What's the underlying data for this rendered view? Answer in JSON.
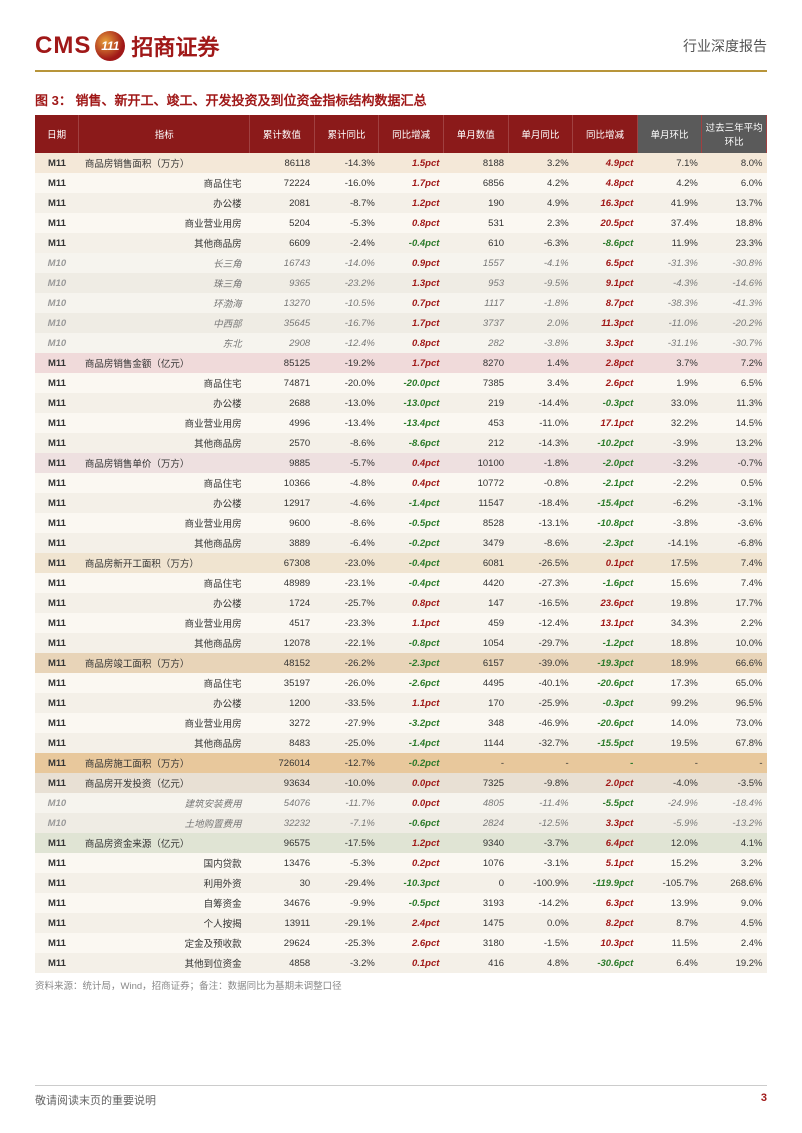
{
  "header": {
    "logo_cms": "CMS",
    "logo_circle": "111",
    "logo_cn": "招商证券",
    "right": "行业深度报告"
  },
  "figure": {
    "num": "图 3：",
    "title": "销售、新开工、竣工、开发投资及到位资金指标结构数据汇总"
  },
  "columns": [
    "日期",
    "指标",
    "累计数值",
    "累计同比",
    "同比增减",
    "单月数值",
    "单月同比",
    "同比增减",
    "单月环比",
    "过去三年平均环比"
  ],
  "sections": [
    {
      "bg": "#f4e8d8",
      "head": [
        "M11",
        "商品房销售面积（万方）",
        "86118",
        "-14.3%",
        "1.5pct",
        "8188",
        "3.2%",
        "4.9pct",
        "7.1%",
        "8.0%"
      ],
      "rows": [
        [
          "M11",
          "商品住宅",
          "72224",
          "-16.0%",
          "1.7pct",
          "6856",
          "4.2%",
          "4.8pct",
          "4.2%",
          "6.0%"
        ],
        [
          "M11",
          "办公楼",
          "2081",
          "-8.7%",
          "1.2pct",
          "190",
          "4.9%",
          "16.3pct",
          "41.9%",
          "13.7%"
        ],
        [
          "M11",
          "商业营业用房",
          "5204",
          "-5.3%",
          "0.8pct",
          "531",
          "2.3%",
          "20.5pct",
          "37.4%",
          "18.8%"
        ],
        [
          "M11",
          "其他商品房",
          "6609",
          "-2.4%",
          "-0.4pct",
          "610",
          "-6.3%",
          "-8.6pct",
          "11.9%",
          "23.3%"
        ]
      ],
      "italic_rows": [
        [
          "M10",
          "长三角",
          "16743",
          "-14.0%",
          "0.9pct",
          "1557",
          "-4.1%",
          "6.5pct",
          "-31.3%",
          "-30.8%"
        ],
        [
          "M10",
          "珠三角",
          "9365",
          "-23.2%",
          "1.3pct",
          "953",
          "-9.5%",
          "9.1pct",
          "-4.3%",
          "-14.6%"
        ],
        [
          "M10",
          "环渤海",
          "13270",
          "-10.5%",
          "0.7pct",
          "1117",
          "-1.8%",
          "8.7pct",
          "-38.3%",
          "-41.3%"
        ],
        [
          "M10",
          "中西部",
          "35645",
          "-16.7%",
          "1.7pct",
          "3737",
          "2.0%",
          "11.3pct",
          "-11.0%",
          "-20.2%"
        ],
        [
          "M10",
          "东北",
          "2908",
          "-12.4%",
          "0.8pct",
          "282",
          "-3.8%",
          "3.3pct",
          "-31.1%",
          "-30.7%"
        ]
      ]
    },
    {
      "bg": "#f0dada",
      "head": [
        "M11",
        "商品房销售金额（亿元）",
        "85125",
        "-19.2%",
        "1.7pct",
        "8270",
        "1.4%",
        "2.8pct",
        "3.7%",
        "7.2%"
      ],
      "rows": [
        [
          "M11",
          "商品住宅",
          "74871",
          "-20.0%",
          "-20.0pct",
          "7385",
          "3.4%",
          "2.6pct",
          "1.9%",
          "6.5%"
        ],
        [
          "M11",
          "办公楼",
          "2688",
          "-13.0%",
          "-13.0pct",
          "219",
          "-14.4%",
          "-0.3pct",
          "33.0%",
          "11.3%"
        ],
        [
          "M11",
          "商业营业用房",
          "4996",
          "-13.4%",
          "-13.4pct",
          "453",
          "-11.0%",
          "17.1pct",
          "32.2%",
          "14.5%"
        ],
        [
          "M11",
          "其他商品房",
          "2570",
          "-8.6%",
          "-8.6pct",
          "212",
          "-14.3%",
          "-10.2pct",
          "-3.9%",
          "13.2%"
        ]
      ]
    },
    {
      "bg": "#eee0e0",
      "head": [
        "M11",
        "商品房销售单价（万方）",
        "9885",
        "-5.7%",
        "0.4pct",
        "10100",
        "-1.8%",
        "-2.0pct",
        "-3.2%",
        "-0.7%"
      ],
      "rows": [
        [
          "M11",
          "商品住宅",
          "10366",
          "-4.8%",
          "0.4pct",
          "10772",
          "-0.8%",
          "-2.1pct",
          "-2.2%",
          "0.5%"
        ],
        [
          "M11",
          "办公楼",
          "12917",
          "-4.6%",
          "-1.4pct",
          "11547",
          "-18.4%",
          "-15.4pct",
          "-6.2%",
          "-3.1%"
        ],
        [
          "M11",
          "商业营业用房",
          "9600",
          "-8.6%",
          "-0.5pct",
          "8528",
          "-13.1%",
          "-10.8pct",
          "-3.8%",
          "-3.6%"
        ],
        [
          "M11",
          "其他商品房",
          "3889",
          "-6.4%",
          "-0.2pct",
          "3479",
          "-8.6%",
          "-2.3pct",
          "-14.1%",
          "-6.8%"
        ]
      ]
    },
    {
      "bg": "#f0e4d0",
      "head": [
        "M11",
        "商品房新开工面积（万方）",
        "67308",
        "-23.0%",
        "-0.4pct",
        "6081",
        "-26.5%",
        "0.1pct",
        "17.5%",
        "7.4%"
      ],
      "rows": [
        [
          "M11",
          "商品住宅",
          "48989",
          "-23.1%",
          "-0.4pct",
          "4420",
          "-27.3%",
          "-1.6pct",
          "15.6%",
          "7.4%"
        ],
        [
          "M11",
          "办公楼",
          "1724",
          "-25.7%",
          "0.8pct",
          "147",
          "-16.5%",
          "23.6pct",
          "19.8%",
          "17.7%"
        ],
        [
          "M11",
          "商业营业用房",
          "4517",
          "-23.3%",
          "1.1pct",
          "459",
          "-12.4%",
          "13.1pct",
          "34.3%",
          "2.2%"
        ],
        [
          "M11",
          "其他商品房",
          "12078",
          "-22.1%",
          "-0.8pct",
          "1054",
          "-29.7%",
          "-1.2pct",
          "18.8%",
          "10.0%"
        ]
      ]
    },
    {
      "bg": "#e8d4b8",
      "head": [
        "M11",
        "商品房竣工面积（万方）",
        "48152",
        "-26.2%",
        "-2.3pct",
        "6157",
        "-39.0%",
        "-19.3pct",
        "18.9%",
        "66.6%"
      ],
      "rows": [
        [
          "M11",
          "商品住宅",
          "35197",
          "-26.0%",
          "-2.6pct",
          "4495",
          "-40.1%",
          "-20.6pct",
          "17.3%",
          "65.0%"
        ],
        [
          "M11",
          "办公楼",
          "1200",
          "-33.5%",
          "1.1pct",
          "170",
          "-25.9%",
          "-0.3pct",
          "99.2%",
          "96.5%"
        ],
        [
          "M11",
          "商业营业用房",
          "3272",
          "-27.9%",
          "-3.2pct",
          "348",
          "-46.9%",
          "-20.6pct",
          "14.0%",
          "73.0%"
        ],
        [
          "M11",
          "其他商品房",
          "8483",
          "-25.0%",
          "-1.4pct",
          "1144",
          "-32.7%",
          "-15.5pct",
          "19.5%",
          "67.8%"
        ]
      ]
    },
    {
      "bg": "#e8c89c",
      "head": [
        "M11",
        "商品房施工面积（万方）",
        "726014",
        "-12.7%",
        "-0.2pct",
        "-",
        "-",
        "-",
        "-",
        "-"
      ]
    },
    {
      "bg": "#e8e0d4",
      "head": [
        "M11",
        "商品房开发投资（亿元）",
        "93634",
        "-10.0%",
        "0.0pct",
        "7325",
        "-9.8%",
        "2.0pct",
        "-4.0%",
        "-3.5%"
      ],
      "italic_rows": [
        [
          "M10",
          "建筑安装费用",
          "54076",
          "-11.7%",
          "0.0pct",
          "4805",
          "-11.4%",
          "-5.5pct",
          "-24.9%",
          "-18.4%"
        ],
        [
          "M10",
          "土地购置费用",
          "32232",
          "-7.1%",
          "-0.6pct",
          "2824",
          "-12.5%",
          "3.3pct",
          "-5.9%",
          "-13.2%"
        ]
      ]
    },
    {
      "bg": "#e0e4d4",
      "head": [
        "M11",
        "商品房资金来源（亿元）",
        "96575",
        "-17.5%",
        "1.2pct",
        "9340",
        "-3.7%",
        "6.4pct",
        "12.0%",
        "4.1%"
      ],
      "rows": [
        [
          "M11",
          "国内贷款",
          "13476",
          "-5.3%",
          "0.2pct",
          "1076",
          "-3.1%",
          "5.1pct",
          "15.2%",
          "3.2%"
        ],
        [
          "M11",
          "利用外资",
          "30",
          "-29.4%",
          "-10.3pct",
          "0",
          "-100.9%",
          "-119.9pct",
          "-105.7%",
          "268.6%"
        ],
        [
          "M11",
          "自筹资金",
          "34676",
          "-9.9%",
          "-0.5pct",
          "3193",
          "-14.2%",
          "6.3pct",
          "13.9%",
          "9.0%"
        ],
        [
          "M11",
          "个人按揭",
          "13911",
          "-29.1%",
          "2.4pct",
          "1475",
          "0.0%",
          "8.2pct",
          "8.7%",
          "4.5%"
        ],
        [
          "M11",
          "定金及预收款",
          "29624",
          "-25.3%",
          "2.6pct",
          "3180",
          "-1.5%",
          "10.3pct",
          "11.5%",
          "2.4%"
        ],
        [
          "M11",
          "其他到位资金",
          "4858",
          "-3.2%",
          "0.1pct",
          "416",
          "4.8%",
          "-30.6pct",
          "6.4%",
          "19.2%"
        ]
      ]
    }
  ],
  "source": "资料来源：统计局，Wind，招商证券；备注：数据同比为基期未调整口径",
  "footer": {
    "left": "敬请阅读末页的重要说明",
    "page": "3"
  },
  "colors": {
    "header_bg": "#8b1a1a",
    "header_bg2": "#5a5a5a",
    "pos": "#a01818",
    "neg": "#2a7a2a",
    "stripe1": "#fbf8f2",
    "stripe2": "#f4f0e8"
  }
}
